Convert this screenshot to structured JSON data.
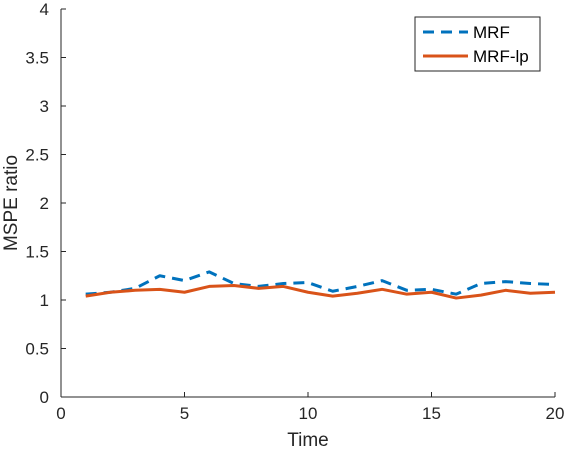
{
  "chart_data": {
    "type": "line",
    "xlabel": "Time",
    "ylabel": "MSPE ratio",
    "xlim": [
      0,
      20
    ],
    "ylim": [
      0,
      4
    ],
    "xticks": [
      0,
      5,
      10,
      15,
      20
    ],
    "xtick_labels": [
      "0",
      "5",
      "10",
      "15",
      "20"
    ],
    "yticks": [
      0,
      0.5,
      1,
      1.5,
      2,
      2.5,
      3,
      3.5,
      4
    ],
    "ytick_labels": [
      "0",
      "0.5",
      "1",
      "1.5",
      "2",
      "2.5",
      "3",
      "3.5",
      "4"
    ],
    "grid": false,
    "legend_position": "top-right",
    "x": [
      1,
      2,
      3,
      4,
      5,
      6,
      7,
      8,
      9,
      10,
      11,
      12,
      13,
      14,
      15,
      16,
      17,
      18,
      19,
      20
    ],
    "series": [
      {
        "name": "MRF",
        "style": "dashed",
        "color": "#0072BD",
        "values": [
          1.06,
          1.08,
          1.12,
          1.25,
          1.2,
          1.29,
          1.17,
          1.14,
          1.17,
          1.18,
          1.09,
          1.14,
          1.2,
          1.1,
          1.11,
          1.06,
          1.17,
          1.19,
          1.17,
          1.16
        ]
      },
      {
        "name": "MRF-lp",
        "style": "solid",
        "color": "#D95319",
        "values": [
          1.04,
          1.08,
          1.1,
          1.11,
          1.08,
          1.14,
          1.15,
          1.12,
          1.14,
          1.08,
          1.04,
          1.07,
          1.11,
          1.06,
          1.08,
          1.02,
          1.05,
          1.1,
          1.07,
          1.08
        ]
      }
    ]
  }
}
